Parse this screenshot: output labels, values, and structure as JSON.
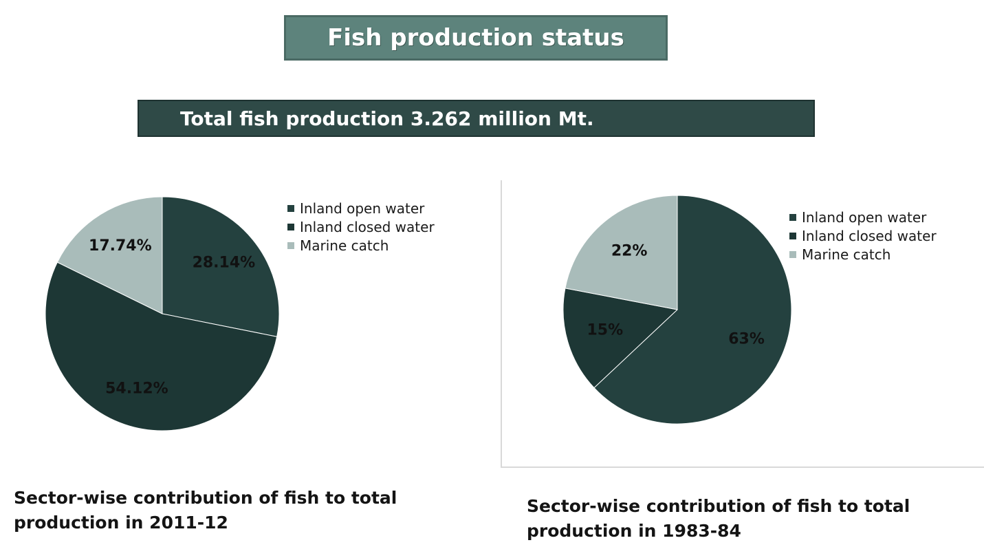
{
  "page": {
    "title": "Fish production status",
    "subtitle": "Total fish production 3.262 million Mt."
  },
  "colors": {
    "inland_open": "#24413f",
    "inland_closed": "#1d3735",
    "marine": "#a9bcba"
  },
  "chart_data": [
    {
      "type": "pie",
      "caption_line1": "Sector-wise contribution of fish to total",
      "caption_line2": "production in 2011-12",
      "legend": [
        "Inland open water",
        "Inland closed water",
        "Marine catch"
      ],
      "slices": [
        {
          "name": "Inland open water",
          "value": 28.14,
          "label": "28.14%"
        },
        {
          "name": "Inland closed water",
          "value": 54.12,
          "label": "54.12%"
        },
        {
          "name": "Marine catch",
          "value": 17.74,
          "label": "17.74%"
        }
      ]
    },
    {
      "type": "pie",
      "caption_line1": "Sector-wise contribution of fish to total",
      "caption_line2": "production in 1983-84",
      "legend": [
        "Inland open water",
        "Inland closed water",
        "Marine catch"
      ],
      "slices": [
        {
          "name": "Inland open water",
          "value": 63,
          "label": "63%"
        },
        {
          "name": "Inland closed water",
          "value": 15,
          "label": "15%"
        },
        {
          "name": "Marine catch",
          "value": 22,
          "label": "22%"
        }
      ]
    }
  ]
}
